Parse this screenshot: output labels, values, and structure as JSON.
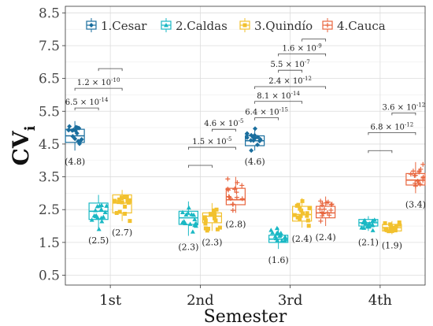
{
  "chart_data": {
    "type": "boxplot",
    "xlabel": "Semester",
    "ylabel_main": "CV",
    "ylabel_sub": "i",
    "ylim": [
      0.2,
      8.7
    ],
    "yticks": [
      "0.5",
      "1.5",
      "2.5",
      "3.5",
      "4.5",
      "5.5",
      "6.5",
      "7.5",
      "8.5"
    ],
    "categories": [
      "1st",
      "2nd",
      "3rd",
      "4th"
    ],
    "grid": true,
    "legend_position": "top",
    "series": [
      {
        "name": "1.Cesar",
        "color": "#1a6e9e",
        "marker": "diamond",
        "stats": [
          {
            "q1": 4.55,
            "median": 4.75,
            "q3": 4.95,
            "lo": 4.3,
            "hi": 5.2,
            "label": "(4.8)"
          },
          null,
          {
            "q1": 4.45,
            "median": 4.6,
            "q3": 4.75,
            "lo": 4.3,
            "hi": 5.0,
            "label": "(4.6)"
          },
          null
        ]
      },
      {
        "name": "2.Caldas",
        "color": "#1ab8c4",
        "marker": "triangle",
        "stats": [
          {
            "q1": 2.2,
            "median": 2.45,
            "q3": 2.7,
            "lo": 1.9,
            "hi": 2.95,
            "label": "(2.5)"
          },
          {
            "q1": 2.05,
            "median": 2.25,
            "q3": 2.45,
            "lo": 1.7,
            "hi": 2.75,
            "label": "(2.3)"
          },
          {
            "q1": 1.5,
            "median": 1.6,
            "q3": 1.72,
            "lo": 1.3,
            "hi": 1.95,
            "label": "(1.6)"
          },
          {
            "q1": 2.0,
            "median": 2.1,
            "q3": 2.2,
            "lo": 1.85,
            "hi": 2.3,
            "label": "(2.1)"
          }
        ]
      },
      {
        "name": "3.Quindío",
        "color": "#f2c12e",
        "marker": "square",
        "stats": [
          {
            "q1": 2.4,
            "median": 2.7,
            "q3": 2.95,
            "lo": 2.15,
            "hi": 3.1,
            "label": "(2.7)"
          },
          {
            "q1": 2.1,
            "median": 2.3,
            "q3": 2.4,
            "lo": 1.85,
            "hi": 2.7,
            "label": "(2.3)"
          },
          {
            "q1": 2.15,
            "median": 2.35,
            "q3": 2.6,
            "lo": 1.95,
            "hi": 2.85,
            "label": "(2.4)"
          },
          {
            "q1": 1.85,
            "median": 1.95,
            "q3": 2.05,
            "lo": 1.75,
            "hi": 2.15,
            "label": "(1.9)"
          }
        ]
      },
      {
        "name": "4.Cauca",
        "color": "#e8663f",
        "marker": "plus",
        "stats": [
          null,
          {
            "q1": 2.65,
            "median": 2.8,
            "q3": 3.15,
            "lo": 2.4,
            "hi": 3.5,
            "label": "(2.8)"
          },
          {
            "q1": 2.25,
            "median": 2.4,
            "q3": 2.6,
            "lo": 2.0,
            "hi": 2.9,
            "label": "(2.4)"
          },
          {
            "q1": 3.25,
            "median": 3.4,
            "q3": 3.6,
            "lo": 3.0,
            "hi": 3.95,
            "label": "(3.4)"
          }
        ]
      }
    ],
    "annotations": [
      {
        "cat": 0,
        "from": 0,
        "to": 1,
        "y": 5.6,
        "base": "6.5",
        "exp": "-14"
      },
      {
        "cat": 0,
        "from": 0,
        "to": 2,
        "y": 6.2,
        "base": "1.2",
        "exp": "-10"
      },
      {
        "cat": 0,
        "from": 1,
        "to": 2,
        "y": 6.8,
        "base": "",
        "exp": ""
      },
      {
        "cat": 1,
        "from": 1,
        "to": 2,
        "y": 3.85,
        "base": "",
        "exp": ""
      },
      {
        "cat": 1,
        "from": 1,
        "to": 3,
        "y": 4.4,
        "base": "1.5",
        "exp": "-5"
      },
      {
        "cat": 1,
        "from": 2,
        "to": 3,
        "y": 4.95,
        "base": "4.6",
        "exp": "-5"
      },
      {
        "cat": 2,
        "from": 0,
        "to": 1,
        "y": 5.3,
        "base": "6.4",
        "exp": "-15"
      },
      {
        "cat": 2,
        "from": 0,
        "to": 2,
        "y": 5.8,
        "base": "8.1",
        "exp": "-14"
      },
      {
        "cat": 2,
        "from": 0,
        "to": 3,
        "y": 6.25,
        "base": "2.4",
        "exp": "-12"
      },
      {
        "cat": 2,
        "from": 1,
        "to": 2,
        "y": 6.75,
        "base": "5.5",
        "exp": "-7"
      },
      {
        "cat": 2,
        "from": 1,
        "to": 3,
        "y": 7.25,
        "base": "1.6",
        "exp": "-9"
      },
      {
        "cat": 2,
        "from": 2,
        "to": 3,
        "y": 7.7,
        "base": "",
        "exp": ""
      },
      {
        "cat": 3,
        "from": 1,
        "to": 2,
        "y": 4.3,
        "base": "",
        "exp": ""
      },
      {
        "cat": 3,
        "from": 1,
        "to": 3,
        "y": 4.85,
        "base": "6.8",
        "exp": "-12"
      },
      {
        "cat": 3,
        "from": 2,
        "to": 3,
        "y": 5.45,
        "base": "3.6",
        "exp": "-12"
      }
    ]
  }
}
